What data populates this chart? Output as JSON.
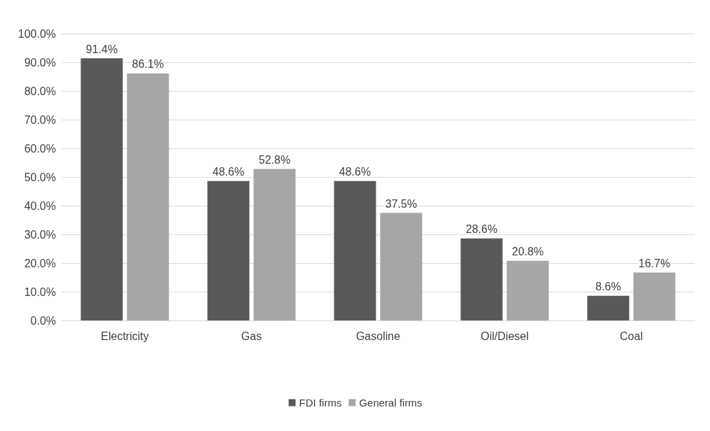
{
  "chart_data": {
    "type": "bar",
    "categories": [
      "Electricity",
      "Gas",
      "Gasoline",
      "Oil/Diesel",
      "Coal"
    ],
    "series": [
      {
        "name": "FDI firms",
        "color": "#595959",
        "values": [
          91.4,
          48.6,
          48.6,
          28.6,
          8.6
        ],
        "value_labels": [
          "91.4%",
          "48.6%",
          "48.6%",
          "28.6%",
          "8.6%"
        ]
      },
      {
        "name": "General firms",
        "color": "#a6a6a6",
        "values": [
          86.1,
          52.8,
          37.5,
          20.8,
          16.7
        ],
        "value_labels": [
          "86.1%",
          "52.8%",
          "37.5%",
          "20.8%",
          "16.7%"
        ]
      }
    ],
    "ylim": [
      0,
      100
    ],
    "yticks": [
      {
        "value": 0,
        "label": "0.0%"
      },
      {
        "value": 10,
        "label": "10.0%"
      },
      {
        "value": 20,
        "label": "20.0%"
      },
      {
        "value": 30,
        "label": "30.0%"
      },
      {
        "value": 40,
        "label": "40.0%"
      },
      {
        "value": 50,
        "label": "50.0%"
      },
      {
        "value": 60,
        "label": "60.0%"
      },
      {
        "value": 70,
        "label": "70.0%"
      },
      {
        "value": 80,
        "label": "80.0%"
      },
      {
        "value": 90,
        "label": "90.0%"
      },
      {
        "value": 100,
        "label": "100.0%"
      }
    ],
    "grid": "y",
    "legend": "bottom"
  }
}
